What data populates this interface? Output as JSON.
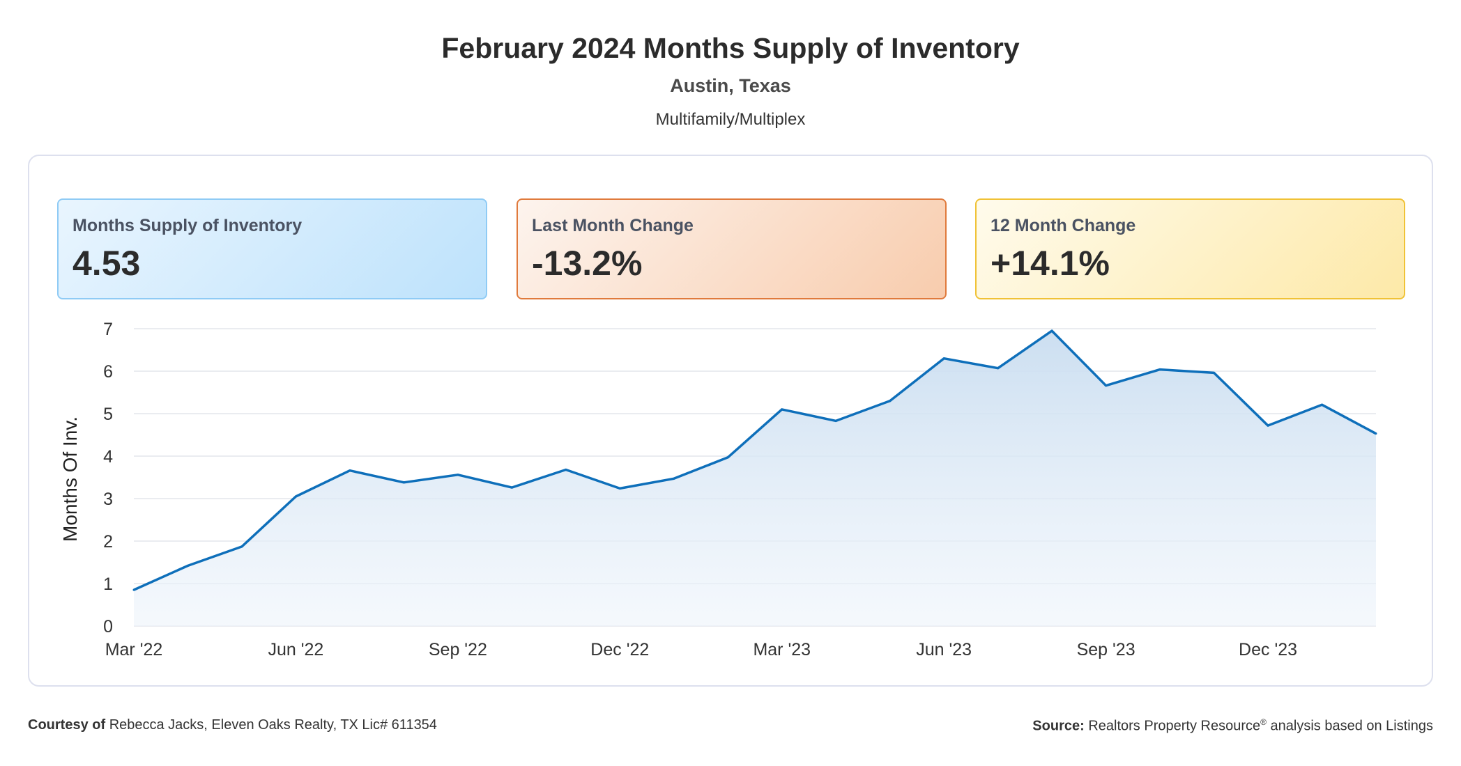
{
  "header": {
    "title": "February 2024 Months Supply of Inventory",
    "location": "Austin, Texas",
    "property_type": "Multifamily/Multiplex"
  },
  "cards": [
    {
      "label": "Months Supply of Inventory",
      "value": "4.53",
      "color": "#8fcbf5"
    },
    {
      "label": "Last Month Change",
      "value": "-13.2%",
      "color": "#e07a3c"
    },
    {
      "label": "12 Month Change",
      "value": "+14.1%",
      "color": "#f0c236"
    }
  ],
  "footer": {
    "courtesy_label": "Courtesy of",
    "courtesy_text": "Rebecca Jacks, Eleven Oaks Realty, TX Lic# 611354",
    "source_label": "Source:",
    "source_text_1": "Realtors Property Resource",
    "source_mark": "®",
    "source_text_2": " analysis based on Listings"
  },
  "chart_data": {
    "type": "area",
    "ylabel": "Months Of Inv.",
    "ylim": [
      0,
      7
    ],
    "yticks": [
      "0",
      "1",
      "2",
      "3",
      "4",
      "5",
      "6",
      "7"
    ],
    "x": [
      "Mar '22",
      "Apr '22",
      "May '22",
      "Jun '22",
      "Jul '22",
      "Aug '22",
      "Sep '22",
      "Oct '22",
      "Nov '22",
      "Dec '22",
      "Jan '23",
      "Feb '23",
      "Mar '23",
      "Apr '23",
      "May '23",
      "Jun '23",
      "Jul '23",
      "Aug '23",
      "Sep '23",
      "Oct '23",
      "Nov '23",
      "Dec '23",
      "Jan '24",
      "Feb '24"
    ],
    "xtick_labels": [
      "Mar '22",
      "Jun '22",
      "Sep '22",
      "Dec '22",
      "Mar '23",
      "Jun '23",
      "Sep '23",
      "Dec '23"
    ],
    "xtick_indices": [
      0,
      3,
      6,
      9,
      12,
      15,
      18,
      21
    ],
    "series": [
      {
        "values": [
          0.85,
          1.42,
          1.87,
          3.05,
          3.66,
          3.38,
          3.56,
          3.26,
          3.68,
          3.24,
          3.47,
          3.97,
          5.1,
          4.83,
          5.3,
          6.3,
          6.07,
          6.95,
          5.66,
          6.04,
          5.96,
          4.72,
          5.21,
          4.53
        ],
        "color": "#0e6fba"
      }
    ],
    "grid": true,
    "fill_color": "#cfe3f3"
  }
}
